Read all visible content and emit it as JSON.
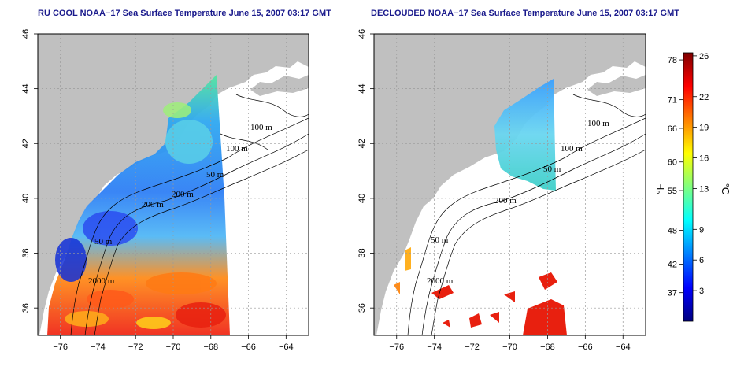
{
  "panels": [
    {
      "id": "left",
      "title": "RU COOL NOAA−17 Sea Surface Temperature June 15, 2007 03:17 GMT",
      "contour_labels": [
        "100 m",
        "100 m",
        "50 m",
        "200 m",
        "200 m",
        "50 m",
        "2000 m"
      ]
    },
    {
      "id": "right",
      "title": "DECLOUDED NOAA−17 Sea Surface Temperature June 15, 2007 03:17 GMT",
      "contour_labels": [
        "100 m",
        "100 m",
        "50 m",
        "200 m",
        "50 m",
        "2000 m"
      ]
    }
  ],
  "map_axes": {
    "lon_ticks": [
      "−76",
      "−74",
      "−72",
      "−70",
      "−68",
      "−66",
      "−64"
    ],
    "lat_ticks": [
      "36",
      "38",
      "40",
      "42",
      "44",
      "46"
    ],
    "lon_range": [
      -77.2,
      -62.8
    ],
    "lat_range": [
      35.0,
      46.0
    ],
    "grid": "dotted"
  },
  "colorbar": {
    "fahrenheit_unit": "°F",
    "celsius_unit": "°C",
    "fahrenheit_ticks": [
      {
        "label": "78",
        "celsius": 25.6
      },
      {
        "label": "71",
        "celsius": 21.7
      },
      {
        "label": "66",
        "celsius": 18.9
      },
      {
        "label": "60",
        "celsius": 15.6
      },
      {
        "label": "55",
        "celsius": 12.8
      },
      {
        "label": "48",
        "celsius": 8.9
      },
      {
        "label": "42",
        "celsius": 5.6
      },
      {
        "label": "37",
        "celsius": 2.8
      }
    ],
    "celsius_ticks": [
      {
        "label": "26",
        "celsius": 26
      },
      {
        "label": "22",
        "celsius": 22
      },
      {
        "label": "19",
        "celsius": 19
      },
      {
        "label": "16",
        "celsius": 16
      },
      {
        "label": "13",
        "celsius": 13
      },
      {
        "label": "9",
        "celsius": 9
      },
      {
        "label": "6",
        "celsius": 6
      },
      {
        "label": "3",
        "celsius": 3
      }
    ],
    "range_celsius": [
      0,
      26.3
    ],
    "colors": [
      "#00007f",
      "#0000ff",
      "#007fff",
      "#00ffff",
      "#7fff7f",
      "#ffff00",
      "#ff7f00",
      "#ff0000",
      "#7f0000"
    ]
  },
  "colors": {
    "land": "#c0c0c0",
    "water_nodata": "#ffffff",
    "title": "#1a1a8c"
  }
}
